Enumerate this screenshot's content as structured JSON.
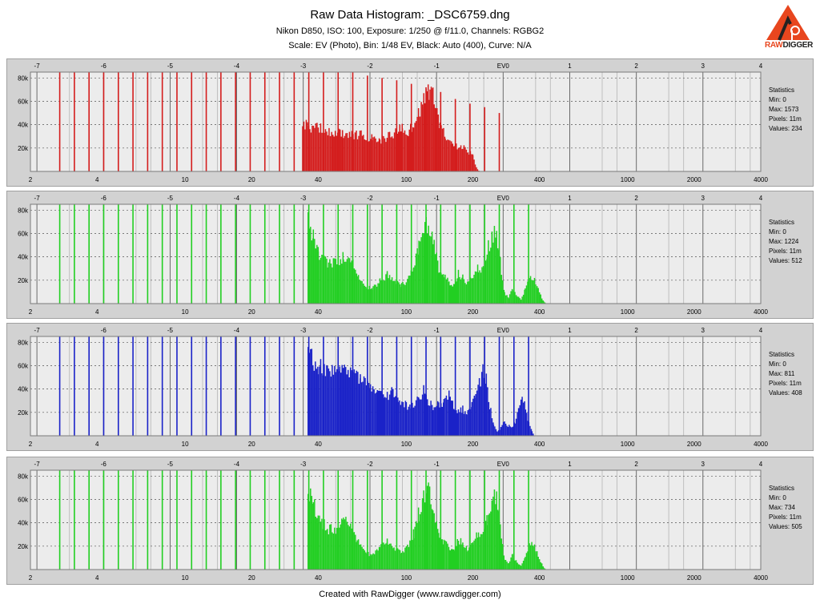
{
  "header": {
    "title": "Raw Data Histogram: _DSC6759.dng",
    "subtitle1": "Nikon D850, ISO: 100, Exposure: 1/250 @ f/11.0, Channels: RGBG2",
    "subtitle2": "Scale: EV (Photo), Bin: 1/48 EV, Black: Auto (400), Curve: N/A"
  },
  "logo": {
    "text_raw": "RAW",
    "text_digger": "DIGGER",
    "color": "#e8461e"
  },
  "footer": "Created with RawDigger (www.rawdigger.com)",
  "chart_data": [
    {
      "type": "bar",
      "name": "R",
      "color": "#d41c1c",
      "ev_ticks": [
        "-7",
        "-6",
        "-5",
        "-4",
        "-3",
        "-2",
        "-1",
        "EV0",
        "1",
        "2",
        "3",
        "4"
      ],
      "value_ticks": [
        "2",
        "4",
        "10",
        "20",
        "40",
        "100",
        "200",
        "400",
        "1000",
        "2000",
        "4000"
      ],
      "y_ticks": [
        "20k",
        "40k",
        "60k",
        "80k"
      ],
      "ylim": [
        0,
        85000
      ],
      "xlim": [
        2,
        4000
      ],
      "stats": {
        "label": "Statistics",
        "min": "Min: 0",
        "max": "Max: 1573",
        "pixels": "Pixels: 11m",
        "values": "Values: 234"
      },
      "spikes": [
        [
          3,
          85000
        ],
        [
          4,
          85000
        ],
        [
          5,
          85000
        ],
        [
          6,
          85000
        ],
        [
          7,
          85000
        ],
        [
          8,
          85000
        ],
        [
          9,
          85000
        ],
        [
          10,
          85000
        ],
        [
          11,
          85000
        ],
        [
          12,
          85000
        ],
        [
          13,
          85000
        ],
        [
          14,
          85000
        ],
        [
          15,
          85000
        ],
        [
          16,
          85000
        ],
        [
          17,
          85000
        ],
        [
          18,
          85000
        ],
        [
          19,
          85000
        ],
        [
          20,
          85000
        ],
        [
          21,
          85000
        ],
        [
          22,
          85000
        ],
        [
          23,
          85000
        ],
        [
          24,
          82000
        ],
        [
          25,
          80000
        ],
        [
          26,
          78000
        ],
        [
          27,
          75000
        ],
        [
          28,
          72000
        ],
        [
          29,
          68000
        ],
        [
          30,
          62000
        ],
        [
          31,
          58000
        ],
        [
          32,
          55000
        ],
        [
          33,
          50000
        ]
      ],
      "profile": [
        [
          34,
          46000
        ],
        [
          40,
          42000
        ],
        [
          46,
          38000
        ],
        [
          52,
          37000
        ],
        [
          58,
          36000
        ],
        [
          64,
          35000
        ],
        [
          70,
          32000
        ],
        [
          76,
          30000
        ],
        [
          82,
          34000
        ],
        [
          90,
          38000
        ],
        [
          96,
          42000
        ],
        [
          102,
          36000
        ],
        [
          108,
          48000
        ],
        [
          114,
          58000
        ],
        [
          120,
          70000
        ],
        [
          124,
          78000
        ],
        [
          128,
          82000
        ],
        [
          132,
          76000
        ],
        [
          136,
          60000
        ],
        [
          142,
          45000
        ],
        [
          150,
          35000
        ],
        [
          160,
          30000
        ],
        [
          170,
          25000
        ],
        [
          180,
          24000
        ],
        [
          190,
          20000
        ],
        [
          200,
          15000
        ],
        [
          205,
          6000
        ],
        [
          210,
          2000
        ],
        [
          214,
          0
        ]
      ]
    },
    {
      "type": "bar",
      "name": "G",
      "color": "#22cf22",
      "ev_ticks": [
        "-7",
        "-6",
        "-5",
        "-4",
        "-3",
        "-2",
        "-1",
        "EV0",
        "1",
        "2",
        "3",
        "4"
      ],
      "value_ticks": [
        "2",
        "4",
        "10",
        "20",
        "40",
        "100",
        "200",
        "400",
        "1000",
        "2000",
        "4000"
      ],
      "y_ticks": [
        "20k",
        "40k",
        "60k",
        "80k"
      ],
      "ylim": [
        0,
        85000
      ],
      "xlim": [
        2,
        4000
      ],
      "stats": {
        "label": "Statistics",
        "min": "Min: 0",
        "max": "Max: 1224",
        "pixels": "Pixels: 11m",
        "values": "Values: 512"
      },
      "spikes": [
        [
          3,
          85000
        ],
        [
          4,
          85000
        ],
        [
          5,
          85000
        ],
        [
          6,
          85000
        ],
        [
          7,
          85000
        ],
        [
          8,
          85000
        ],
        [
          9,
          85000
        ],
        [
          10,
          85000
        ],
        [
          11,
          85000
        ],
        [
          12,
          85000
        ],
        [
          13,
          85000
        ],
        [
          14,
          85000
        ],
        [
          15,
          85000
        ],
        [
          16,
          85000
        ],
        [
          17,
          85000
        ],
        [
          18,
          85000
        ],
        [
          19,
          85000
        ],
        [
          20,
          85000
        ],
        [
          21,
          85000
        ],
        [
          22,
          85000
        ],
        [
          23,
          85000
        ],
        [
          24,
          85000
        ],
        [
          25,
          85000
        ],
        [
          26,
          85000
        ],
        [
          27,
          85000
        ],
        [
          28,
          85000
        ],
        [
          29,
          85000
        ],
        [
          30,
          85000
        ],
        [
          31,
          85000
        ],
        [
          32,
          85000
        ],
        [
          33,
          85000
        ],
        [
          34,
          85000
        ],
        [
          35,
          85000
        ]
      ],
      "profile": [
        [
          36,
          80000
        ],
        [
          38,
          65000
        ],
        [
          40,
          50000
        ],
        [
          44,
          40000
        ],
        [
          48,
          40000
        ],
        [
          52,
          46000
        ],
        [
          56,
          44000
        ],
        [
          60,
          30000
        ],
        [
          64,
          18000
        ],
        [
          70,
          14000
        ],
        [
          76,
          22000
        ],
        [
          82,
          28000
        ],
        [
          88,
          22000
        ],
        [
          94,
          18000
        ],
        [
          100,
          20000
        ],
        [
          108,
          35000
        ],
        [
          114,
          55000
        ],
        [
          120,
          72000
        ],
        [
          126,
          80000
        ],
        [
          132,
          65000
        ],
        [
          140,
          35000
        ],
        [
          148,
          28000
        ],
        [
          156,
          20000
        ],
        [
          164,
          18000
        ],
        [
          172,
          30000
        ],
        [
          180,
          25000
        ],
        [
          190,
          20000
        ],
        [
          200,
          28000
        ],
        [
          212,
          35000
        ],
        [
          220,
          32000
        ],
        [
          232,
          50000
        ],
        [
          244,
          68000
        ],
        [
          256,
          72000
        ],
        [
          266,
          40000
        ],
        [
          278,
          10000
        ],
        [
          290,
          6000
        ],
        [
          302,
          14000
        ],
        [
          314,
          8000
        ],
        [
          330,
          4000
        ],
        [
          345,
          14000
        ],
        [
          360,
          24000
        ],
        [
          375,
          26000
        ],
        [
          390,
          16000
        ],
        [
          405,
          8000
        ],
        [
          418,
          2000
        ],
        [
          430,
          0
        ]
      ]
    },
    {
      "type": "bar",
      "name": "B",
      "color": "#1a22c8",
      "ev_ticks": [
        "-7",
        "-6",
        "-5",
        "-4",
        "-3",
        "-2",
        "-1",
        "EV0",
        "1",
        "2",
        "3",
        "4"
      ],
      "value_ticks": [
        "2",
        "4",
        "10",
        "20",
        "40",
        "100",
        "200",
        "400",
        "1000",
        "2000",
        "4000"
      ],
      "y_ticks": [
        "20k",
        "40k",
        "60k",
        "80k"
      ],
      "ylim": [
        0,
        85000
      ],
      "xlim": [
        2,
        4000
      ],
      "stats": {
        "label": "Statistics",
        "min": "Min: 0",
        "max": "Max: 811",
        "pixels": "Pixels: 11m",
        "values": "Values: 408"
      },
      "spikes": [
        [
          3,
          85000
        ],
        [
          4,
          85000
        ],
        [
          5,
          85000
        ],
        [
          6,
          85000
        ],
        [
          7,
          85000
        ],
        [
          8,
          85000
        ],
        [
          9,
          85000
        ],
        [
          10,
          85000
        ],
        [
          11,
          85000
        ],
        [
          12,
          85000
        ],
        [
          13,
          85000
        ],
        [
          14,
          85000
        ],
        [
          15,
          85000
        ],
        [
          16,
          85000
        ],
        [
          17,
          85000
        ],
        [
          18,
          85000
        ],
        [
          19,
          85000
        ],
        [
          20,
          85000
        ],
        [
          21,
          85000
        ],
        [
          22,
          85000
        ],
        [
          23,
          85000
        ],
        [
          24,
          85000
        ],
        [
          25,
          85000
        ],
        [
          26,
          85000
        ],
        [
          27,
          85000
        ],
        [
          28,
          85000
        ],
        [
          29,
          85000
        ],
        [
          30,
          85000
        ],
        [
          31,
          85000
        ],
        [
          32,
          85000
        ],
        [
          33,
          85000
        ],
        [
          34,
          85000
        ],
        [
          35,
          85000
        ]
      ],
      "profile": [
        [
          36,
          80000
        ],
        [
          40,
          70000
        ],
        [
          44,
          66000
        ],
        [
          50,
          62000
        ],
        [
          56,
          60000
        ],
        [
          62,
          55000
        ],
        [
          68,
          48000
        ],
        [
          74,
          42000
        ],
        [
          80,
          38000
        ],
        [
          86,
          42000
        ],
        [
          92,
          36000
        ],
        [
          100,
          30000
        ],
        [
          108,
          28000
        ],
        [
          114,
          38000
        ],
        [
          120,
          45000
        ],
        [
          126,
          34000
        ],
        [
          132,
          28000
        ],
        [
          140,
          30000
        ],
        [
          148,
          32000
        ],
        [
          156,
          40000
        ],
        [
          164,
          28000
        ],
        [
          172,
          24000
        ],
        [
          180,
          26000
        ],
        [
          190,
          22000
        ],
        [
          198,
          32000
        ],
        [
          206,
          38000
        ],
        [
          214,
          50000
        ],
        [
          222,
          64000
        ],
        [
          230,
          54000
        ],
        [
          238,
          30000
        ],
        [
          248,
          12000
        ],
        [
          258,
          4000
        ],
        [
          268,
          8000
        ],
        [
          278,
          14000
        ],
        [
          288,
          10000
        ],
        [
          300,
          8000
        ],
        [
          310,
          14000
        ],
        [
          322,
          24000
        ],
        [
          334,
          36000
        ],
        [
          346,
          28000
        ],
        [
          358,
          12000
        ],
        [
          370,
          4000
        ],
        [
          380,
          0
        ]
      ]
    },
    {
      "type": "bar",
      "name": "G2",
      "color": "#22cf22",
      "ev_ticks": [
        "-7",
        "-6",
        "-5",
        "-4",
        "-3",
        "-2",
        "-1",
        "EV0",
        "1",
        "2",
        "3",
        "4"
      ],
      "value_ticks": [
        "2",
        "4",
        "10",
        "20",
        "40",
        "100",
        "200",
        "400",
        "1000",
        "2000",
        "4000"
      ],
      "y_ticks": [
        "20k",
        "40k",
        "60k",
        "80k"
      ],
      "ylim": [
        0,
        85000
      ],
      "xlim": [
        2,
        4000
      ],
      "stats": {
        "label": "Statistics",
        "min": "Min: 0",
        "max": "Max: 734",
        "pixels": "Pixels: 11m",
        "values": "Values: 505"
      },
      "spikes": [
        [
          3,
          85000
        ],
        [
          4,
          85000
        ],
        [
          5,
          85000
        ],
        [
          6,
          85000
        ],
        [
          7,
          85000
        ],
        [
          8,
          85000
        ],
        [
          9,
          85000
        ],
        [
          10,
          85000
        ],
        [
          11,
          85000
        ],
        [
          12,
          85000
        ],
        [
          13,
          85000
        ],
        [
          14,
          85000
        ],
        [
          15,
          85000
        ],
        [
          16,
          85000
        ],
        [
          17,
          85000
        ],
        [
          18,
          85000
        ],
        [
          19,
          85000
        ],
        [
          20,
          85000
        ],
        [
          21,
          85000
        ],
        [
          22,
          85000
        ],
        [
          23,
          85000
        ],
        [
          24,
          85000
        ],
        [
          25,
          85000
        ],
        [
          26,
          85000
        ],
        [
          27,
          85000
        ],
        [
          28,
          85000
        ],
        [
          29,
          85000
        ],
        [
          30,
          85000
        ],
        [
          31,
          85000
        ],
        [
          32,
          85000
        ],
        [
          33,
          85000
        ],
        [
          34,
          85000
        ],
        [
          35,
          85000
        ]
      ],
      "profile": [
        [
          36,
          80000
        ],
        [
          38,
          65000
        ],
        [
          40,
          50000
        ],
        [
          44,
          40000
        ],
        [
          48,
          40000
        ],
        [
          52,
          46000
        ],
        [
          56,
          44000
        ],
        [
          60,
          30000
        ],
        [
          64,
          18000
        ],
        [
          70,
          14000
        ],
        [
          76,
          22000
        ],
        [
          82,
          28000
        ],
        [
          88,
          22000
        ],
        [
          94,
          18000
        ],
        [
          100,
          20000
        ],
        [
          108,
          35000
        ],
        [
          114,
          55000
        ],
        [
          120,
          72000
        ],
        [
          126,
          80000
        ],
        [
          132,
          65000
        ],
        [
          140,
          35000
        ],
        [
          148,
          28000
        ],
        [
          156,
          20000
        ],
        [
          164,
          18000
        ],
        [
          172,
          30000
        ],
        [
          180,
          25000
        ],
        [
          190,
          20000
        ],
        [
          200,
          28000
        ],
        [
          212,
          35000
        ],
        [
          220,
          32000
        ],
        [
          232,
          50000
        ],
        [
          244,
          68000
        ],
        [
          256,
          72000
        ],
        [
          266,
          40000
        ],
        [
          278,
          10000
        ],
        [
          290,
          6000
        ],
        [
          302,
          14000
        ],
        [
          314,
          8000
        ],
        [
          330,
          4000
        ],
        [
          345,
          14000
        ],
        [
          360,
          24000
        ],
        [
          375,
          26000
        ],
        [
          390,
          16000
        ],
        [
          405,
          8000
        ],
        [
          418,
          2000
        ],
        [
          430,
          0
        ]
      ]
    }
  ]
}
